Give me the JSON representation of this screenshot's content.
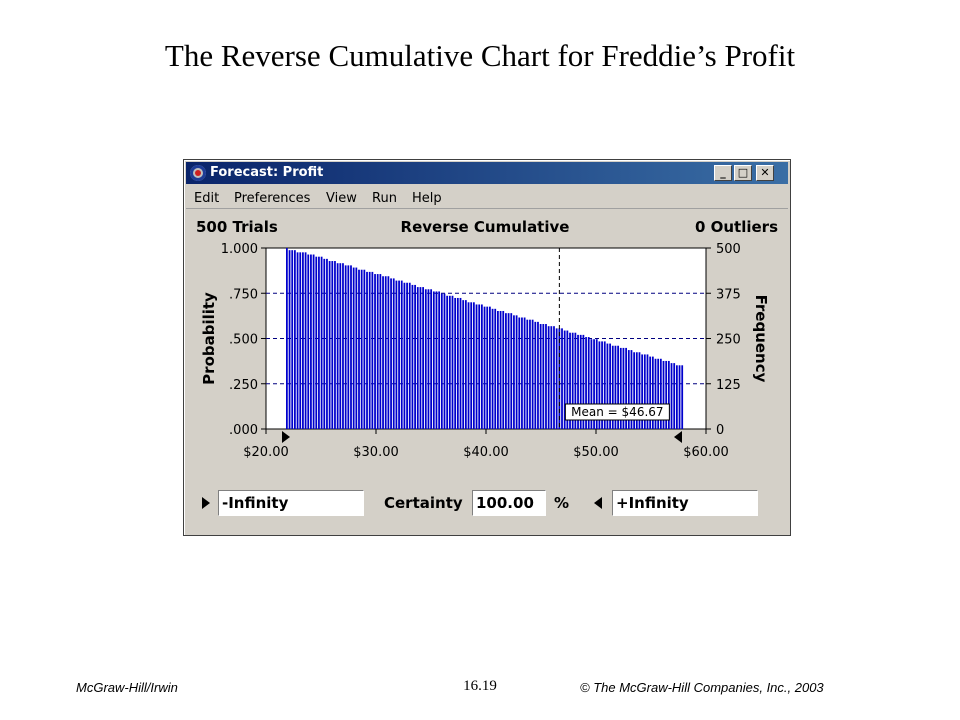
{
  "slide": {
    "title": "The Reverse Cumulative Chart for Freddie’s Profit",
    "footer_left": "McGraw-Hill/Irwin",
    "footer_center": "16.19",
    "footer_right": "© The McGraw-Hill Companies, Inc., 2003"
  },
  "window": {
    "title": "Forecast: Profit",
    "controls": {
      "minimize": "_",
      "maximize": "□",
      "close": "✕"
    },
    "menu": [
      "Edit",
      "Preferences",
      "View",
      "Run",
      "Help"
    ]
  },
  "header": {
    "trials": "500 Trials",
    "mode": "Reverse Cumulative",
    "outliers": "0 Outliers"
  },
  "bottom": {
    "lower_value": "-Infinity",
    "certainty_label": "Certainty",
    "certainty_value": "100.00",
    "percent": "%",
    "upper_value": "+Infinity"
  },
  "chart_data": {
    "type": "bar",
    "ylabel": "Probability",
    "y2label": "Frequency",
    "y_ticks": [
      ".000",
      ".250",
      ".500",
      ".750",
      "1.000"
    ],
    "y2_ticks": [
      "0",
      "125",
      "250",
      "375",
      "500"
    ],
    "x_ticks": [
      "$20.00",
      "$30.00",
      "$40.00",
      "$50.00",
      "$60.00"
    ],
    "xlim": [
      20,
      60
    ],
    "ylim": [
      0,
      1
    ],
    "mean_label": "Mean = $46.67",
    "mean": 46.67,
    "grid": "dashed",
    "bar_color": "#0000cc",
    "values": [
      1.0,
      0.988,
      0.988,
      0.988,
      0.976,
      0.976,
      0.976,
      0.976,
      0.964,
      0.964,
      0.964,
      0.952,
      0.952,
      0.952,
      0.94,
      0.94,
      0.928,
      0.928,
      0.928,
      0.916,
      0.916,
      0.916,
      0.904,
      0.904,
      0.904,
      0.892,
      0.892,
      0.88,
      0.88,
      0.88,
      0.868,
      0.868,
      0.868,
      0.856,
      0.856,
      0.856,
      0.844,
      0.844,
      0.844,
      0.832,
      0.832,
      0.82,
      0.82,
      0.82,
      0.808,
      0.808,
      0.808,
      0.796,
      0.796,
      0.784,
      0.784,
      0.784,
      0.772,
      0.772,
      0.772,
      0.76,
      0.76,
      0.76,
      0.748,
      0.748,
      0.736,
      0.736,
      0.736,
      0.724,
      0.724,
      0.724,
      0.712,
      0.712,
      0.7,
      0.7,
      0.7,
      0.688,
      0.688,
      0.688,
      0.676,
      0.676,
      0.676,
      0.664,
      0.664,
      0.652,
      0.652,
      0.652,
      0.64,
      0.64,
      0.64,
      0.628,
      0.628,
      0.616,
      0.616,
      0.616,
      0.604,
      0.604,
      0.604,
      0.592,
      0.592,
      0.58,
      0.58,
      0.58,
      0.568,
      0.568,
      0.568,
      0.556,
      0.556,
      0.556,
      0.544,
      0.544,
      0.532,
      0.532,
      0.532,
      0.52,
      0.52,
      0.52,
      0.508,
      0.508,
      0.496,
      0.496,
      0.496,
      0.484,
      0.484,
      0.484,
      0.472,
      0.472,
      0.46,
      0.46,
      0.46,
      0.448,
      0.448,
      0.448,
      0.436,
      0.436,
      0.424,
      0.424,
      0.424,
      0.412,
      0.412,
      0.412,
      0.4,
      0.4,
      0.388,
      0.388,
      0.388,
      0.376,
      0.376,
      0.376,
      0.364,
      0.364,
      0.352,
      0.352,
      0.352
    ]
  }
}
